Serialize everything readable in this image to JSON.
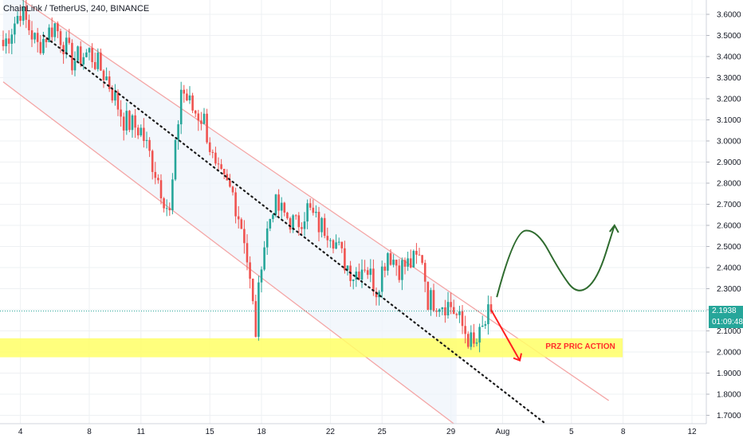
{
  "header": {
    "symbol": "ChainLink / TetherUS, 240, BINANCE"
  },
  "colors": {
    "up": "#26a69a",
    "down": "#ef5350",
    "channel": "#f4a6a6",
    "channel_fill": "#eef3fb",
    "trendline": "#1a1a1a",
    "zone": "#ffff66",
    "price_line": "#26a69a",
    "projection": "#2e6b2e",
    "arrow": "#ff2020"
  },
  "price_tags": {
    "last_price": "2.1938",
    "countdown": "01:09:48"
  },
  "annotation": {
    "zone_label": "PRZ PRIC ACTION"
  },
  "chart_data": {
    "type": "candlestick",
    "title": "ChainLink / TetherUS, 240, BINANCE",
    "ylim": [
      1.65,
      3.65
    ],
    "yticks": [
      "3.6000",
      "3.5000",
      "3.4000",
      "3.3000",
      "3.2000",
      "3.1000",
      "3.0000",
      "2.9000",
      "2.8000",
      "2.7000",
      "2.6000",
      "2.5000",
      "2.4000",
      "2.3000",
      "2.2000",
      "2.1000",
      "2.0000",
      "1.9000",
      "1.8000",
      "1.7000"
    ],
    "ytick_values": [
      3.6,
      3.5,
      3.4,
      3.3,
      3.2,
      3.1,
      3.0,
      2.9,
      2.8,
      2.7,
      2.6,
      2.5,
      2.4,
      2.3,
      2.2,
      2.1,
      2.0,
      1.9,
      1.8,
      1.7
    ],
    "xticks": [
      "4",
      "8",
      "11",
      "15",
      "18",
      "22",
      "25",
      "29",
      "Aug",
      "5",
      "8",
      "12"
    ],
    "xtick_index": [
      6,
      30,
      48,
      72,
      90,
      114,
      132,
      156,
      174,
      198,
      216,
      240
    ],
    "last_price": 2.1938,
    "zone": [
      1.975,
      2.065
    ],
    "grid": true,
    "anchors": [
      [
        0,
        3.45
      ],
      [
        6,
        3.62
      ],
      [
        12,
        3.45
      ],
      [
        18,
        3.55
      ],
      [
        24,
        3.38
      ],
      [
        30,
        3.42
      ],
      [
        36,
        3.3
      ],
      [
        42,
        3.1
      ],
      [
        48,
        3.05
      ],
      [
        54,
        2.82
      ],
      [
        58,
        2.65
      ],
      [
        62,
        3.25
      ],
      [
        66,
        3.15
      ],
      [
        70,
        3.1
      ],
      [
        74,
        2.85
      ],
      [
        80,
        2.75
      ],
      [
        84,
        2.55
      ],
      [
        88,
        2.1
      ],
      [
        90,
        2.45
      ],
      [
        94,
        2.7
      ],
      [
        98,
        2.65
      ],
      [
        102,
        2.6
      ],
      [
        106,
        2.68
      ],
      [
        110,
        2.6
      ],
      [
        114,
        2.58
      ],
      [
        118,
        2.45
      ],
      [
        122,
        2.37
      ],
      [
        126,
        2.42
      ],
      [
        130,
        2.3
      ],
      [
        134,
        2.48
      ],
      [
        138,
        2.4
      ],
      [
        142,
        2.42
      ],
      [
        146,
        2.45
      ],
      [
        148,
        2.25
      ],
      [
        152,
        2.24
      ],
      [
        156,
        2.22
      ],
      [
        160,
        2.12
      ],
      [
        164,
        2.02
      ],
      [
        166,
        2.07
      ],
      [
        169,
        2.17
      ],
      [
        170,
        2.19
      ]
    ],
    "channel": {
      "upper": [
        [
          0,
          3.73
        ],
        [
          211,
          1.77
        ]
      ],
      "lower": [
        [
          0,
          3.28
        ],
        [
          158,
          1.65
        ]
      ]
    },
    "trendline": [
      [
        14,
        3.5
      ],
      [
        189,
        1.66
      ]
    ],
    "projection": [
      [
        172,
        2.26
      ],
      [
        178,
        2.57
      ],
      [
        186,
        2.58
      ],
      [
        194,
        2.38
      ],
      [
        200,
        2.27
      ],
      [
        207,
        2.34
      ],
      [
        213,
        2.6
      ]
    ]
  }
}
